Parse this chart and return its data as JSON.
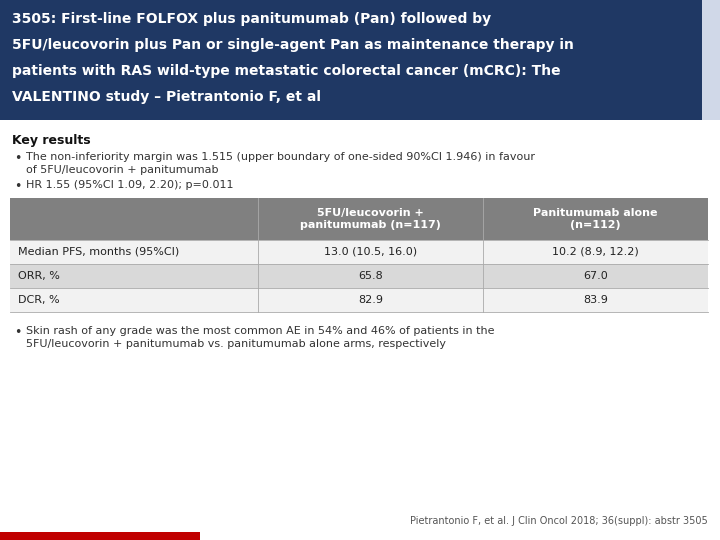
{
  "title_line1": "3505: First-line FOLFOX plus panitumumab (Pan) followed by",
  "title_line2": "5FU/leucovorin plus Pan or single-agent Pan as maintenance therapy in",
  "title_line3": "patients with RAS wild-type metastatic colorectal cancer (mCRC): The",
  "title_line4": "VALENTINO study – Pietrantonio F, et al",
  "title_bg": "#1f3864",
  "title_color": "#ffffff",
  "title_right_strip_color": "#d0d8e8",
  "section_key_results": "Key results",
  "bullet1_line1": "The non-inferiority margin was 1.515 (upper boundary of one-sided 90%CI 1.946) in favour",
  "bullet1_line2": "of 5FU/leucovorin + panitumumab",
  "bullet2": "HR 1.55 (95%CI 1.09, 2.20); p=0.011",
  "bullet3_line1": "Skin rash of any grade was the most common AE in 54% and 46% of patients in the",
  "bullet3_line2": "5FU/leucovorin + panitumumab vs. panitumumab alone arms, respectively",
  "table_header_bg": "#808080",
  "table_header_color": "#ffffff",
  "table_row_bgs": [
    "#f2f2f2",
    "#d9d9d9",
    "#f2f2f2"
  ],
  "table_col2_header": "5FU/leucovorin +\npanitumumab (n=117)",
  "table_col3_header": "Panitumumab alone\n(n=112)",
  "table_rows": [
    [
      "Median PFS, months (95%CI)",
      "13.0 (10.5, 16.0)",
      "10.2 (8.9, 12.2)"
    ],
    [
      "ORR, %",
      "65.8",
      "67.0"
    ],
    [
      "DCR, %",
      "82.9",
      "83.9"
    ]
  ],
  "footer": "Pietrantonio F, et al. J Clin Oncol 2018; 36(suppl): abstr 3505",
  "footer_color": "#555555",
  "accent_color": "#c00000",
  "bg_color": "#ffffff"
}
